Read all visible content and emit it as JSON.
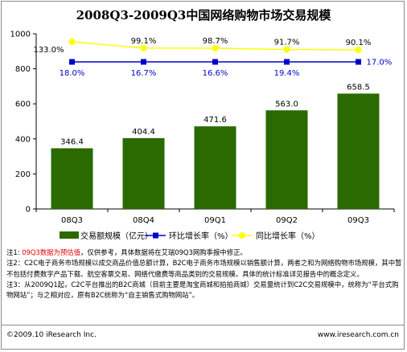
{
  "chart_data": {
    "type": "bar",
    "title": "2008Q3-2009Q3中国网络购物市场交易规模",
    "categories": [
      "08Q3",
      "08Q4",
      "09Q1",
      "09Q2",
      "09Q3"
    ],
    "series": [
      {
        "name": "交易额规模（亿元）",
        "type": "bar",
        "values": [
          346.4,
          404.4,
          471.6,
          563.0,
          658.5
        ],
        "value_labels": [
          "346.4",
          "404.4",
          "471.6",
          "563.0",
          "658.5"
        ],
        "color": "#2b6a00"
      },
      {
        "name": "环比增长率（%）",
        "type": "line",
        "values": [
          18.0,
          16.7,
          16.6,
          19.4,
          17.0
        ],
        "value_labels": [
          "18.0%",
          "16.7%",
          "16.6%",
          "19.4%",
          "17.0%"
        ],
        "color": "#0000cc"
      },
      {
        "name": "同比增长率（%）",
        "type": "line",
        "values": [
          133.0,
          99.1,
          98.7,
          91.7,
          90.1
        ],
        "value_labels": [
          "133.0%",
          "99.1%",
          "98.7%",
          "91.7%",
          "90.1%"
        ],
        "color": "#ffff00"
      }
    ],
    "y_ticks": [
      "0",
      "200",
      "400",
      "600",
      "800",
      "1000"
    ],
    "ylim": [
      0,
      1000
    ],
    "grid": false,
    "legend_position": "bottom"
  },
  "notes": {
    "n1_prefix": "注1: ",
    "n1_red": "09Q3数据为预估值",
    "n1_rest": "，仅供参考，具体数据将在艾瑞09Q3网购季报中修正。",
    "n2": "注2：C2C电子商务市场规模以成交商品价值总额计算，B2C电子商务市场规模以销售额计算，两者之和为网络购物市场规模，其中暂不包括付费数字产品下载、航空客票交易、网络代缴费等商品类别的交易规模。具体的统计标准详见报告中的概念定义。",
    "n3": "注3：从2009Q1起，C2C平台推出的B2C商城（目前主要是淘宝商城和拍拍商城）交易量统计到C2C交易规模中，统称为“平台式购物网站”；与之相对应，原有B2C统称为“自主销售式购物网站”。"
  },
  "footer": {
    "copyright": "©2009.10 iResearch Inc.",
    "website": "www.iresearch.com.cn"
  }
}
